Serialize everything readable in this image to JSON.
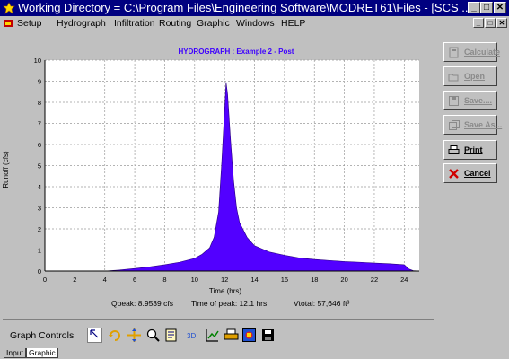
{
  "window": {
    "title": "Working Directory = C:\\Program Files\\Engineering Software\\MODRET61\\Files - [SCS ...",
    "minimize": "_",
    "maximize": "□",
    "close": "✕"
  },
  "menu": {
    "items": [
      "Setup",
      "Hydrograph",
      "Infiltration",
      "Routing",
      "Graphic",
      "Windows",
      "HELP"
    ],
    "mdi_min": "_",
    "mdi_restore": "□",
    "mdi_close": "✕"
  },
  "sidebar": {
    "calculate": "Calculate",
    "open": "Open",
    "save": "Save....",
    "save_as": "Save As...",
    "print": "Print",
    "cancel": "Cancel"
  },
  "chart_data": {
    "type": "area",
    "title": "HYDROGRAPH : Example 2 - Post",
    "xlabel": "Time (hrs)",
    "ylabel": "Runoff (cfs)",
    "xlim": [
      0,
      25
    ],
    "ylim": [
      0,
      10
    ],
    "x_ticks": [
      0,
      2,
      4,
      6,
      8,
      10,
      12,
      14,
      16,
      18,
      20,
      22,
      24
    ],
    "y_ticks": [
      0,
      1,
      2,
      3,
      4,
      5,
      6,
      7,
      8,
      9,
      10
    ],
    "grid": true,
    "fill_color": "#5200ff",
    "x": [
      0,
      4,
      5,
      6,
      7,
      8,
      9,
      10,
      10.5,
      11,
      11.3,
      11.6,
      11.8,
      12.0,
      12.1,
      12.2,
      12.4,
      12.6,
      12.8,
      13.0,
      13.5,
      14,
      15,
      16,
      17,
      18,
      19,
      20,
      21,
      22,
      23,
      24,
      24.3,
      24.6,
      25
    ],
    "values": [
      0,
      0,
      0.05,
      0.12,
      0.2,
      0.3,
      0.42,
      0.6,
      0.8,
      1.1,
      1.6,
      2.8,
      5.0,
      7.6,
      8.95,
      8.4,
      6.2,
      4.3,
      3.0,
      2.3,
      1.6,
      1.2,
      0.9,
      0.75,
      0.62,
      0.55,
      0.5,
      0.45,
      0.42,
      0.38,
      0.35,
      0.3,
      0.1,
      0.02,
      0
    ],
    "summary": {
      "qpeak": "Qpeak: 8.9539 cfs",
      "time_of_peak": "Time of peak: 12.1 hrs",
      "vtotal": "Vtotal: 57,646 ft³"
    }
  },
  "graph_controls": {
    "label": "Graph Controls",
    "tools": [
      "pointer-icon",
      "rotate-icon",
      "pan-icon",
      "zoom-icon",
      "axis-icon",
      "3d-icon",
      "chart-edit-icon",
      "print-icon",
      "copy-icon",
      "save-icon"
    ],
    "three_d_label": "3D"
  },
  "tabs": [
    "Input",
    "Graphic"
  ]
}
